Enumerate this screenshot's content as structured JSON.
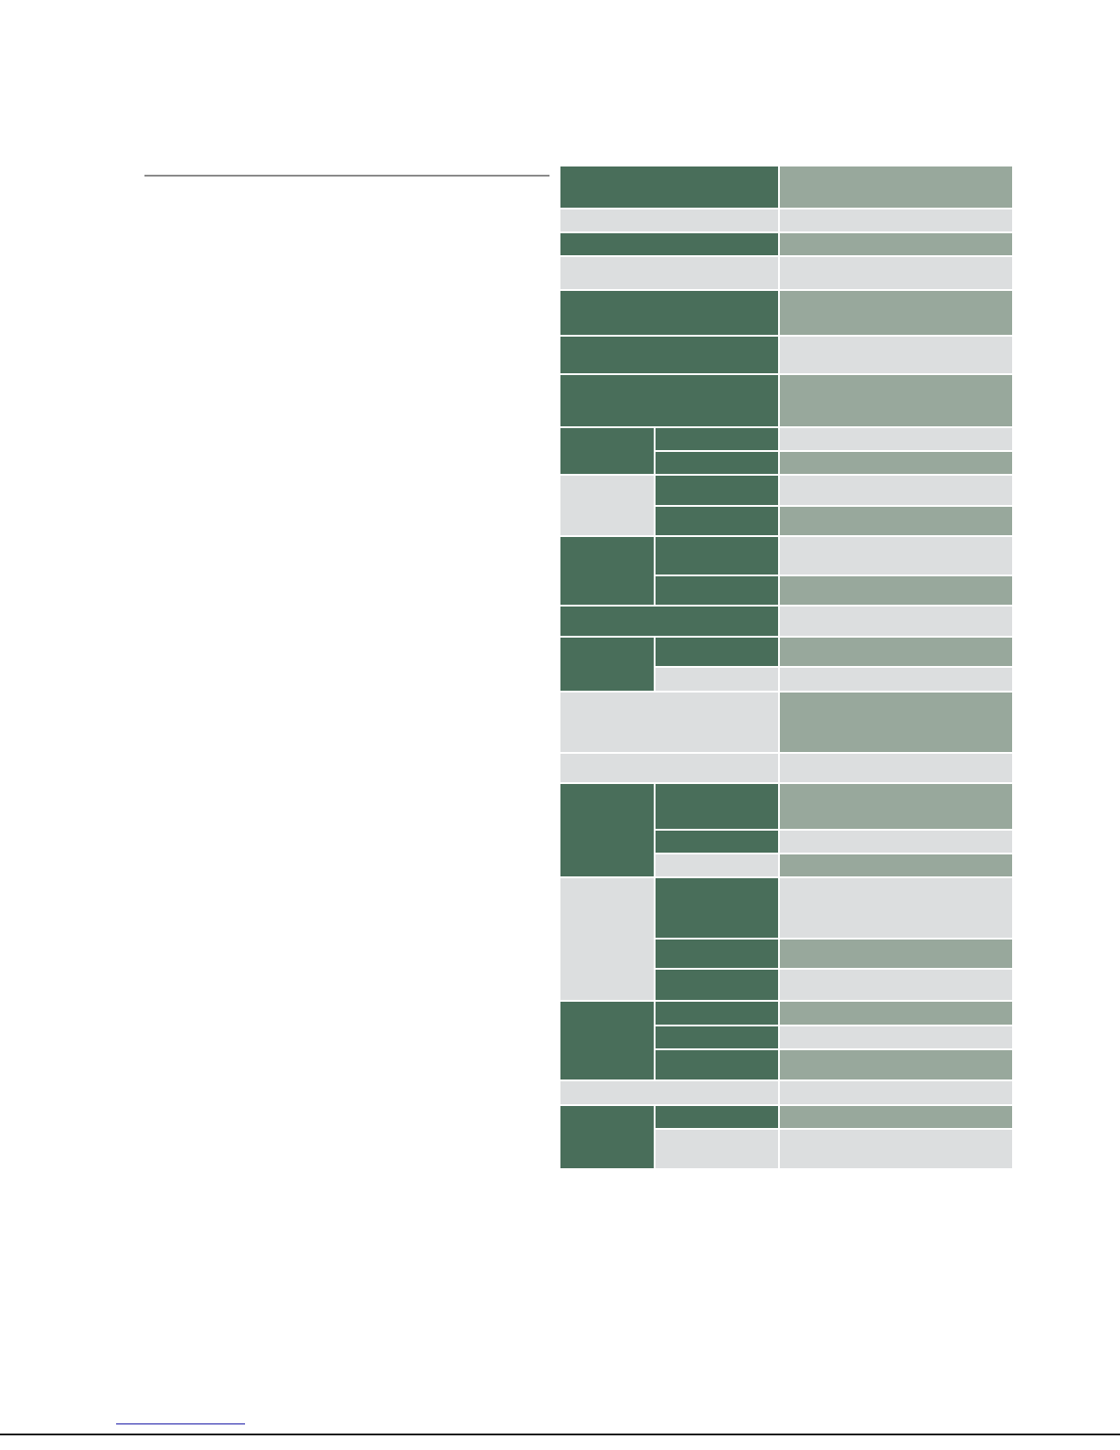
{
  "colors": {
    "header_dark": "#496e5a",
    "value_medium": "#98a89c",
    "light_gray": "#dcdedf",
    "divider": "#ffffff"
  },
  "table": {
    "rows": []
  }
}
